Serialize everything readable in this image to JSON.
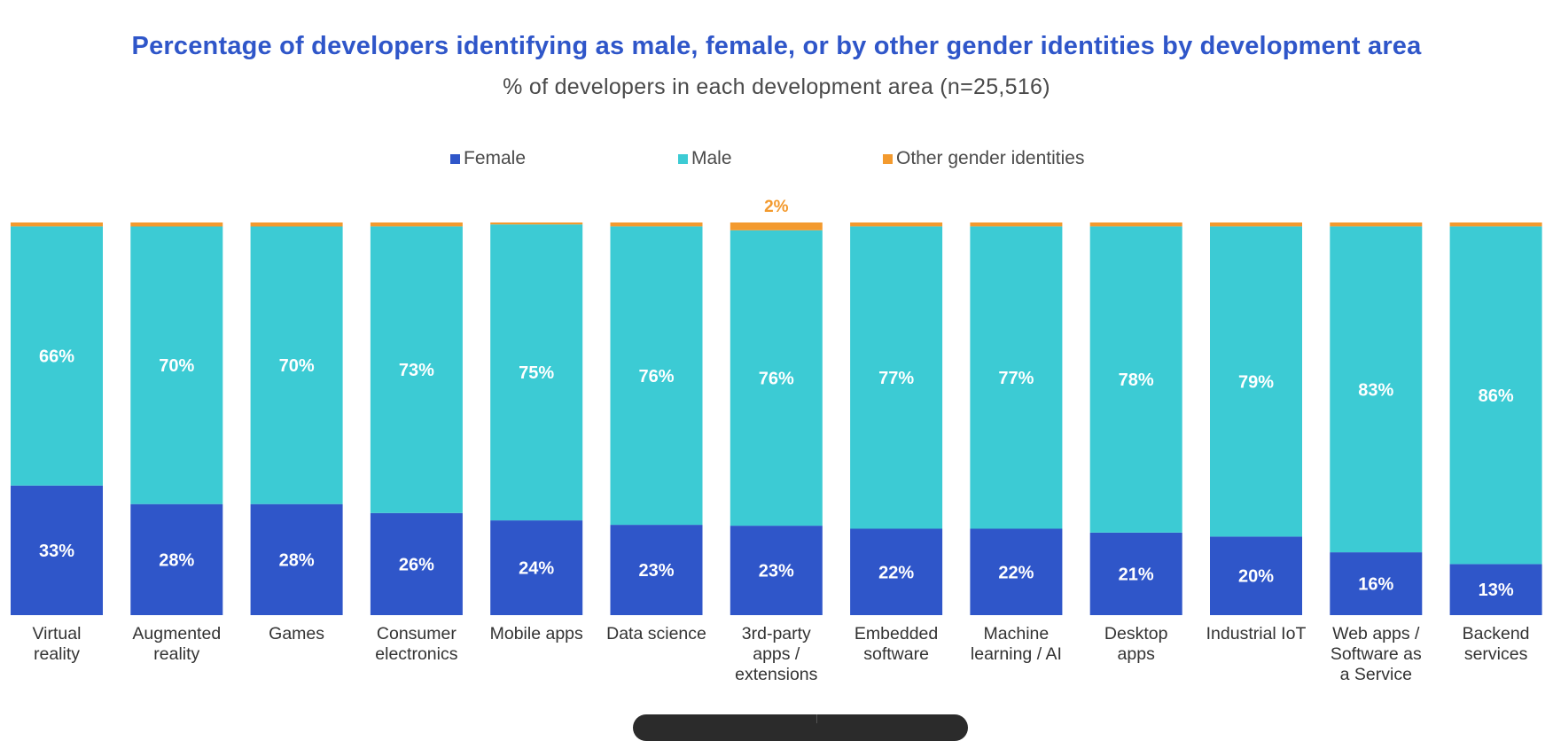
{
  "colors": {
    "title": "#2f56c9",
    "subtitle": "#4a4a4a",
    "female": "#2f56c9",
    "male": "#3ccbd4",
    "other": "#f39a2e",
    "label_text": "#333333"
  },
  "chart_data": {
    "type": "bar",
    "stacked": true,
    "percent_stacked": true,
    "title": "Percentage of developers identifying as male, female, or by other gender identities by development area",
    "subtitle": "% of developers in each development area (n=25,516)",
    "xlabel": "",
    "ylabel": "",
    "ylim": [
      0,
      100
    ],
    "legend_position": "top-center",
    "grid": false,
    "categories": [
      "Virtual\nreality",
      "Augmented\nreality",
      "Games",
      "Consumer\nelectronics",
      "Mobile apps",
      "Data science",
      "3rd-party\napps /\nextensions",
      "Embedded\nsoftware",
      "Machine\nlearning / AI",
      "Desktop\napps",
      "Industrial IoT",
      "Web apps /\nSoftware as\na Service",
      "Backend\nservices"
    ],
    "series": [
      {
        "name": "Female",
        "values": [
          33,
          28,
          28,
          26,
          24,
          23,
          23,
          22,
          22,
          21,
          20,
          16,
          13
        ],
        "labels": [
          "33%",
          "28%",
          "28%",
          "26%",
          "24%",
          "23%",
          "23%",
          "22%",
          "22%",
          "21%",
          "20%",
          "16%",
          "13%"
        ]
      },
      {
        "name": "Male",
        "values": [
          66,
          70,
          70,
          73,
          75,
          76,
          76,
          77,
          77,
          78,
          79,
          83,
          86
        ],
        "labels": [
          "66%",
          "70%",
          "70%",
          "73%",
          "75%",
          "76%",
          "76%",
          "77%",
          "77%",
          "78%",
          "79%",
          "83%",
          "86%"
        ]
      },
      {
        "name": "Other gender identities",
        "values": [
          1,
          1,
          1,
          1,
          0.5,
          1,
          2,
          1,
          1,
          1,
          1,
          1,
          1
        ],
        "labels": [
          "",
          "",
          "",
          "",
          "",
          "",
          "2%",
          "",
          "",
          "",
          "",
          "",
          ""
        ]
      }
    ]
  }
}
